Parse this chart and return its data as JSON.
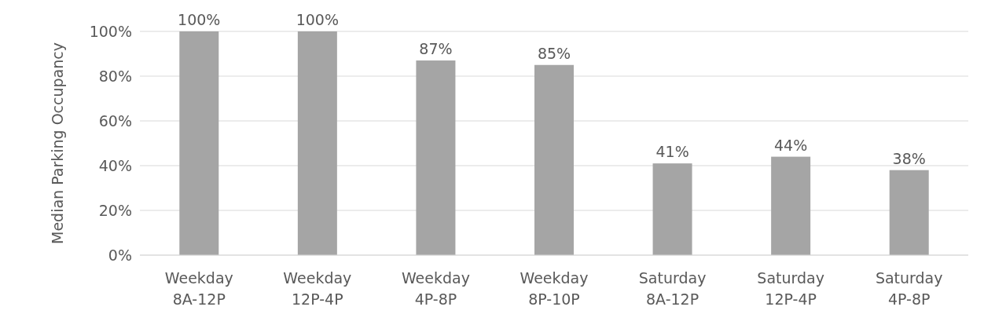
{
  "chart_data": {
    "type": "bar",
    "ylabel": "Median Parking Occupancy",
    "categories": [
      "Weekday\n8A-12P",
      "Weekday\n12P-4P",
      "Weekday\n4P-8P",
      "Weekday\n8P-10P",
      "Saturday\n8A-12P",
      "Saturday\n12P-4P",
      "Saturday\n4P-8P"
    ],
    "values": [
      100,
      100,
      87,
      85,
      41,
      44,
      38
    ],
    "value_labels": [
      "100%",
      "100%",
      "87%",
      "85%",
      "41%",
      "44%",
      "38%"
    ],
    "color": "#a5a5a5",
    "ylim": [
      0,
      100
    ],
    "yticks": [
      {
        "value": 0,
        "label": "0%"
      },
      {
        "value": 20,
        "label": "20%"
      },
      {
        "value": 40,
        "label": "40%"
      },
      {
        "value": 60,
        "label": "60%"
      },
      {
        "value": 80,
        "label": "80%"
      },
      {
        "value": 100,
        "label": "100%"
      }
    ],
    "grid": "y"
  }
}
